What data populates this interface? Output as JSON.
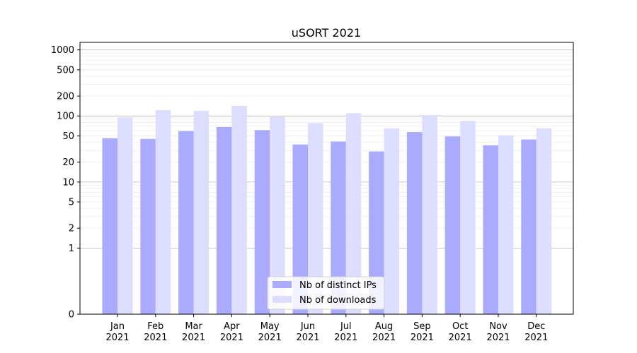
{
  "chart_data": {
    "type": "bar",
    "title": "uSORT 2021",
    "xlabel": "",
    "ylabel": "",
    "y_scale": "symlog",
    "ylim": [
      0,
      1300
    ],
    "y_ticks": [
      0,
      1,
      2,
      5,
      10,
      20,
      50,
      100,
      200,
      500,
      1000
    ],
    "grid": true,
    "legend_position": "lower center",
    "categories": [
      "Jan\n2021",
      "Feb\n2021",
      "Mar\n2021",
      "Apr\n2021",
      "May\n2021",
      "Jun\n2021",
      "Jul\n2021",
      "Aug\n2021",
      "Sep\n2021",
      "Oct\n2021",
      "Nov\n2021",
      "Dec\n2021"
    ],
    "series": [
      {
        "name": "Nb of distinct IPs",
        "color": "#aaaaff",
        "values": [
          46,
          45,
          59,
          68,
          61,
          37,
          41,
          29,
          57,
          49,
          36,
          44
        ]
      },
      {
        "name": "Nb of downloads",
        "color": "#ddddff",
        "values": [
          95,
          122,
          120,
          142,
          97,
          78,
          110,
          65,
          103,
          84,
          51,
          65
        ]
      }
    ]
  }
}
